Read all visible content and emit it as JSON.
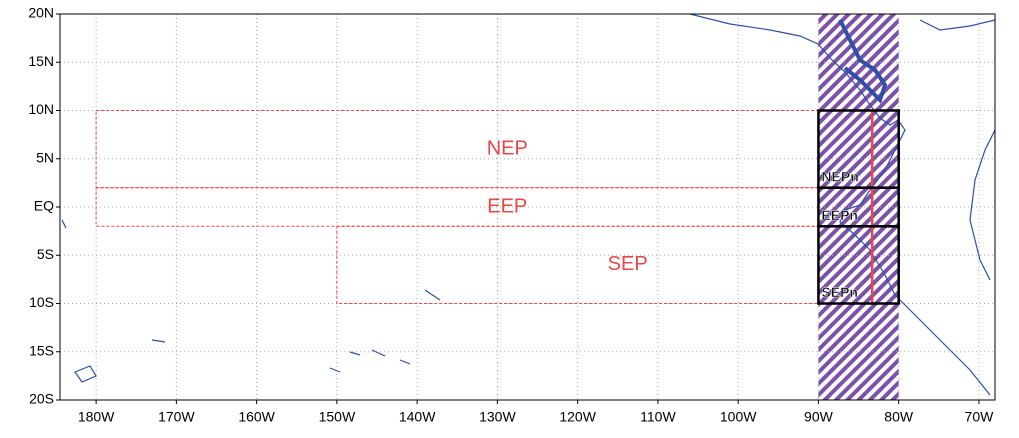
{
  "map": {
    "xlim": [
      -184.5,
      -68
    ],
    "ylim": [
      -20,
      20
    ],
    "xticks": [
      {
        "value": -180,
        "label": "180W"
      },
      {
        "value": -170,
        "label": "170W"
      },
      {
        "value": -160,
        "label": "160W"
      },
      {
        "value": -150,
        "label": "150W"
      },
      {
        "value": -140,
        "label": "140W"
      },
      {
        "value": -130,
        "label": "130W"
      },
      {
        "value": -120,
        "label": "120W"
      },
      {
        "value": -110,
        "label": "110W"
      },
      {
        "value": -100,
        "label": "100W"
      },
      {
        "value": -90,
        "label": "90W"
      },
      {
        "value": -80,
        "label": "80W"
      },
      {
        "value": -70,
        "label": "70W"
      }
    ],
    "yticks": [
      {
        "value": 20,
        "label": "20N"
      },
      {
        "value": 15,
        "label": "15N"
      },
      {
        "value": 10,
        "label": "10N"
      },
      {
        "value": 5,
        "label": "5N"
      },
      {
        "value": 0,
        "label": "EQ"
      },
      {
        "value": -5,
        "label": "5S"
      },
      {
        "value": -10,
        "label": "10S"
      },
      {
        "value": -15,
        "label": "15S"
      },
      {
        "value": -20,
        "label": "20S"
      }
    ],
    "grid": true,
    "hatch": {
      "lon": [
        -90,
        -80
      ],
      "color": "#7b52a8"
    },
    "regions": [
      {
        "name": "NEP",
        "lon": [
          -180,
          -90
        ],
        "lat": [
          2,
          10
        ],
        "color": "#e8474a"
      },
      {
        "name": "EEP",
        "lon": [
          -180,
          -90
        ],
        "lat": [
          -2,
          2
        ],
        "color": "#e8474a"
      },
      {
        "name": "SEP",
        "lon": [
          -150,
          -90
        ],
        "lat": [
          -10,
          -2
        ],
        "color": "#e8474a"
      }
    ],
    "subregions": [
      {
        "name": "NEPn",
        "lon": [
          -90,
          -80
        ],
        "lat": [
          2,
          10
        ],
        "color": "#000000"
      },
      {
        "name": "EEPn",
        "lon": [
          -90,
          -80
        ],
        "lat": [
          -2,
          2
        ],
        "color": "#000000"
      },
      {
        "name": "SEPn",
        "lon": [
          -90,
          -80
        ],
        "lat": [
          -10,
          -2
        ],
        "color": "#000000"
      }
    ],
    "line": {
      "lon": -83.3,
      "lat": [
        10,
        -10
      ],
      "color": "#e8474a"
    }
  }
}
